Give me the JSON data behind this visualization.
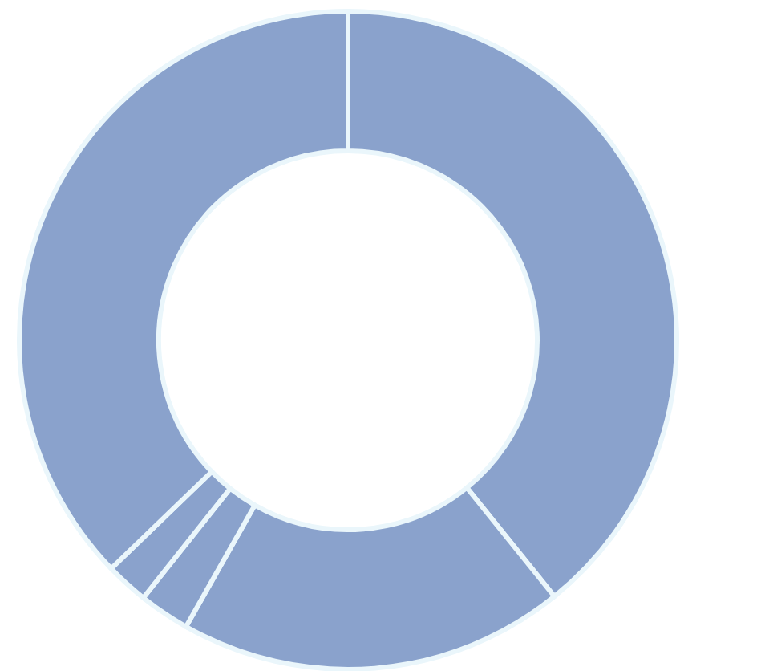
{
  "chart_data": {
    "type": "donut",
    "categories": [
      null,
      null,
      null,
      null,
      null
    ],
    "values": [
      39.2,
      19.0,
      2.5,
      2.1,
      37.2
    ],
    "colors": [
      "#8aa2cc",
      "#8aa2cc",
      "#8aa2cc",
      "#8aa2cc",
      "#8aa2cc"
    ]
  }
}
